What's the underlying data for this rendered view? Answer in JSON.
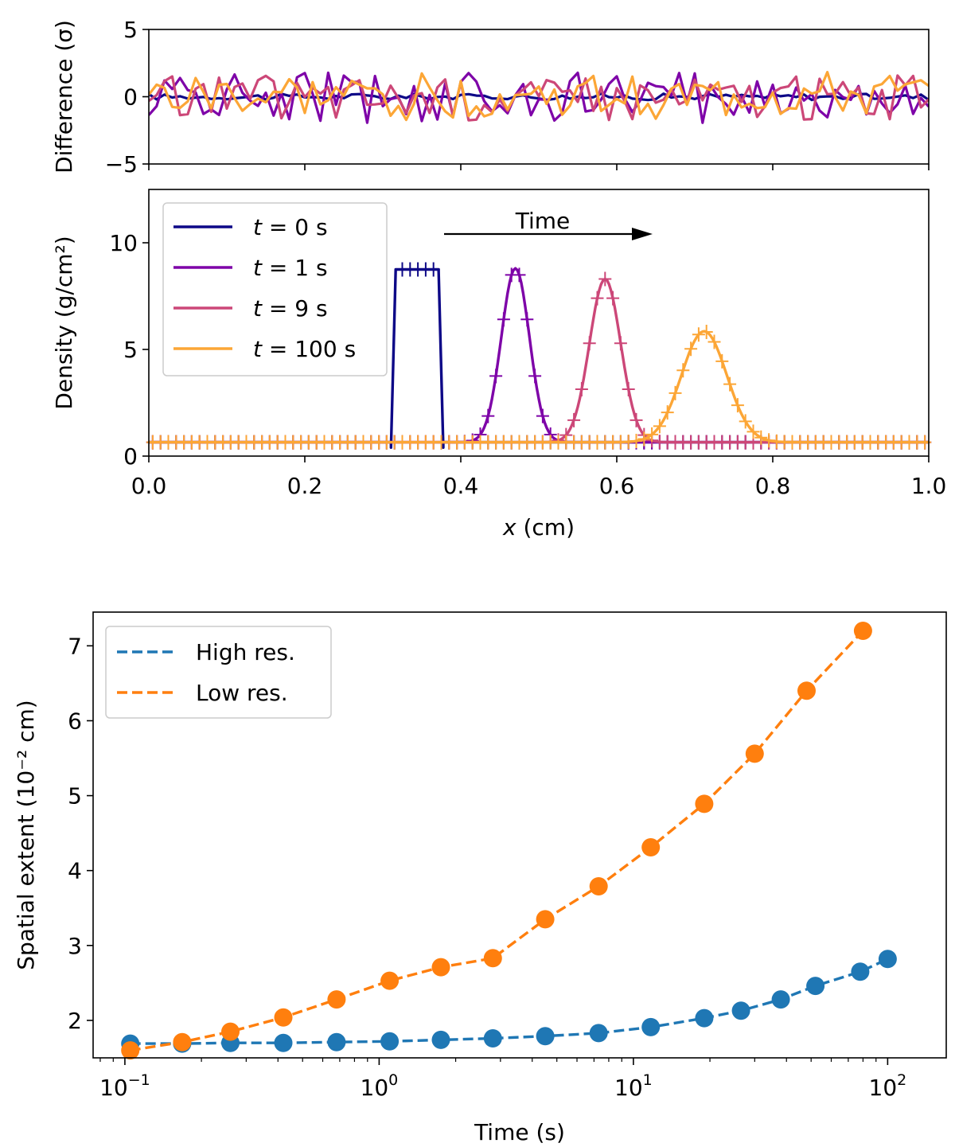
{
  "chart_data": [
    {
      "id": "difference",
      "type": "line",
      "ylabel": "Difference (σ)",
      "ylim": [
        -5,
        5
      ],
      "xlim": [
        0,
        1
      ],
      "yticks": [
        -5,
        0,
        5
      ],
      "ytick_labels": [
        "−5",
        "0",
        "5"
      ],
      "series": [
        {
          "name": "t = 0 s",
          "color": "#0d0887",
          "amplitude": 0.12
        },
        {
          "name": "t = 1 s",
          "color": "#7e03a8",
          "amplitude": 0.9
        },
        {
          "name": "t = 9 s",
          "color": "#cc4778",
          "amplitude": 0.85
        },
        {
          "name": "t = 100 s",
          "color": "#fca636",
          "amplitude": 0.85
        }
      ],
      "n_points": 100
    },
    {
      "id": "density",
      "type": "line",
      "xlabel_var": "x",
      "xlabel_unit": " (cm)",
      "ylabel": "Density (g/cm²)",
      "xlim": [
        0,
        1
      ],
      "ylim": [
        0,
        12.5
      ],
      "xticks": [
        0.0,
        0.2,
        0.4,
        0.6,
        0.8,
        1.0
      ],
      "xtick_labels": [
        "0.0",
        "0.2",
        "0.4",
        "0.6",
        "0.8",
        "1.0"
      ],
      "yticks": [
        0,
        5,
        10
      ],
      "ytick_labels": [
        "0",
        "5",
        "10"
      ],
      "baseline": 0.65,
      "annotation": "Time",
      "legend": {
        "position": "top-left"
      },
      "series": [
        {
          "name": "t = 0 s",
          "t_label": "t",
          "eq_label": " = 0 s",
          "color": "#0d0887",
          "shape": "tophat",
          "center": 0.344,
          "width": 0.055,
          "peak": 8.75
        },
        {
          "name": "t = 1 s",
          "t_label": "t",
          "eq_label": " = 1 s",
          "color": "#7e03a8",
          "shape": "gauss",
          "center": 0.47,
          "sigma": 0.018,
          "peak": 8.8
        },
        {
          "name": "t = 9 s",
          "t_label": "t",
          "eq_label": " = 9 s",
          "color": "#cc4778",
          "shape": "gauss",
          "center": 0.585,
          "sigma": 0.02,
          "peak": 8.3
        },
        {
          "name": "t = 100 s",
          "t_label": "t",
          "eq_label": " = 100 s",
          "color": "#fca636",
          "shape": "gauss",
          "center": 0.712,
          "sigma": 0.029,
          "peak": 5.85
        }
      ]
    },
    {
      "id": "extent",
      "type": "line",
      "xscale": "log",
      "xlabel": "Time (s)",
      "ylabel": "Spatial extent (10⁻² cm)",
      "xlim": [
        0.075,
        170
      ],
      "ylim": [
        1.5,
        7.45
      ],
      "xticks": [
        0.1,
        1,
        10,
        100
      ],
      "xtick_base": [
        "10",
        "10",
        "10",
        "10"
      ],
      "xtick_exp": [
        "−1",
        "0",
        "1",
        "2"
      ],
      "yticks": [
        2,
        3,
        4,
        5,
        6,
        7
      ],
      "ytick_labels": [
        "2",
        "3",
        "4",
        "5",
        "6",
        "7"
      ],
      "legend": {
        "position": "top-left"
      },
      "series": [
        {
          "name": "High res.",
          "color": "#1f77b4",
          "x": [
            0.105,
            0.168,
            0.26,
            0.42,
            0.68,
            1.1,
            1.75,
            2.8,
            4.5,
            7.3,
            11.7,
            19,
            26.5,
            38,
            52,
            78,
            100
          ],
          "y": [
            1.69,
            1.69,
            1.7,
            1.7,
            1.71,
            1.72,
            1.74,
            1.76,
            1.79,
            1.83,
            1.91,
            2.03,
            2.13,
            2.28,
            2.46,
            2.65,
            2.82
          ]
        },
        {
          "name": "Low res.",
          "color": "#ff7f0e",
          "x": [
            0.105,
            0.168,
            0.26,
            0.42,
            0.68,
            1.1,
            1.75,
            2.8,
            4.5,
            7.3,
            11.7,
            19,
            30,
            48,
            80
          ],
          "y": [
            1.6,
            1.71,
            1.85,
            2.04,
            2.28,
            2.53,
            2.71,
            2.83,
            3.35,
            3.79,
            4.31,
            4.89,
            5.56,
            6.4,
            7.2
          ]
        }
      ]
    }
  ]
}
